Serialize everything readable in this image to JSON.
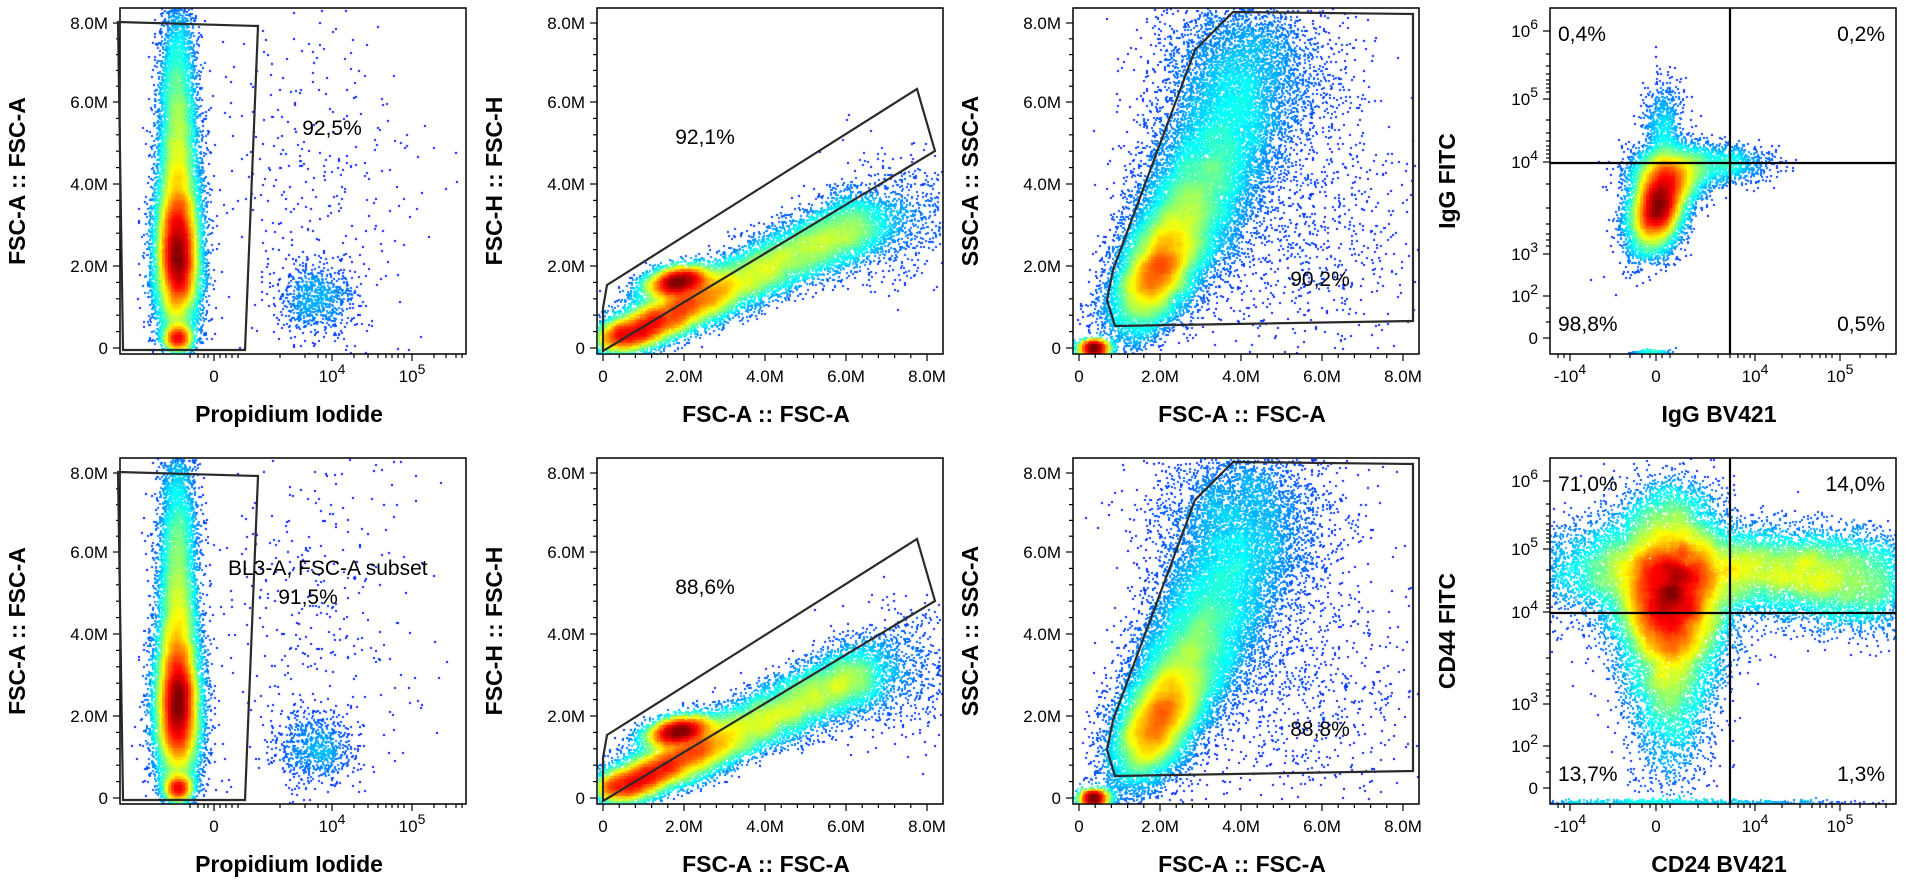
{
  "chart_data": [
    {
      "id": "p11",
      "type": "scatter",
      "xlabel": "Propidium Iodide",
      "ylabel": "FSC-A :: FSC-A",
      "x_scale": "biexponential",
      "y_scale": "linear",
      "yticks": [
        "0",
        "2.0M",
        "4.0M",
        "6.0M",
        "8.0M"
      ],
      "xticks": [
        "0",
        "10^4",
        "10^5"
      ],
      "gates": [
        {
          "label": "92,5%",
          "name": ""
        }
      ]
    },
    {
      "id": "p12",
      "type": "scatter",
      "xlabel": "FSC-A :: FSC-A",
      "ylabel": "FSC-H :: FSC-H",
      "x_scale": "linear",
      "y_scale": "linear",
      "yticks": [
        "0",
        "2.0M",
        "4.0M",
        "6.0M",
        "8.0M"
      ],
      "xticks": [
        "0",
        "2.0M",
        "4.0M",
        "6.0M",
        "8.0M"
      ],
      "gates": [
        {
          "label": "92,1%",
          "name": ""
        }
      ]
    },
    {
      "id": "p13",
      "type": "scatter",
      "xlabel": "FSC-A :: FSC-A",
      "ylabel": "SSC-A :: SSC-A",
      "x_scale": "linear",
      "y_scale": "linear",
      "yticks": [
        "0",
        "2.0M",
        "4.0M",
        "6.0M",
        "8.0M"
      ],
      "xticks": [
        "0",
        "2.0M",
        "4.0M",
        "6.0M",
        "8.0M"
      ],
      "gates": [
        {
          "label": "90,2%",
          "name": ""
        }
      ]
    },
    {
      "id": "p14",
      "type": "scatter",
      "xlabel": "IgG BV421",
      "ylabel": "IgG FITC",
      "x_scale": "biexponential",
      "y_scale": "biexponential",
      "yticks": [
        "0",
        "10^2",
        "10^3",
        "10^4",
        "10^5",
        "10^6"
      ],
      "xticks": [
        "-10^4",
        "0",
        "10^4",
        "10^5"
      ],
      "quadrants": {
        "top_left": "0,4%",
        "top_right": "0,2%",
        "bottom_left": "98,8%",
        "bottom_right": "0,5%"
      }
    },
    {
      "id": "p21",
      "type": "scatter",
      "xlabel": "Propidium Iodide",
      "ylabel": "FSC-A :: FSC-A",
      "x_scale": "biexponential",
      "y_scale": "linear",
      "yticks": [
        "0",
        "2.0M",
        "4.0M",
        "6.0M",
        "8.0M"
      ],
      "xticks": [
        "0",
        "10^4",
        "10^5"
      ],
      "gates": [
        {
          "label": "91,5%",
          "name": "BL3-A, FSC-A subset"
        }
      ]
    },
    {
      "id": "p22",
      "type": "scatter",
      "xlabel": "FSC-A :: FSC-A",
      "ylabel": "FSC-H :: FSC-H",
      "x_scale": "linear",
      "y_scale": "linear",
      "yticks": [
        "0",
        "2.0M",
        "4.0M",
        "6.0M",
        "8.0M"
      ],
      "xticks": [
        "0",
        "2.0M",
        "4.0M",
        "6.0M",
        "8.0M"
      ],
      "gates": [
        {
          "label": "88,6%",
          "name": ""
        }
      ]
    },
    {
      "id": "p23",
      "type": "scatter",
      "xlabel": "FSC-A :: FSC-A",
      "ylabel": "SSC-A :: SSC-A",
      "x_scale": "linear",
      "y_scale": "linear",
      "yticks": [
        "0",
        "2.0M",
        "4.0M",
        "6.0M",
        "8.0M"
      ],
      "xticks": [
        "0",
        "2.0M",
        "4.0M",
        "6.0M",
        "8.0M"
      ],
      "gates": [
        {
          "label": "88,8%",
          "name": ""
        }
      ]
    },
    {
      "id": "p24",
      "type": "scatter",
      "xlabel": "CD24 BV421",
      "ylabel": "CD44 FITC",
      "x_scale": "biexponential",
      "y_scale": "biexponential",
      "yticks": [
        "0",
        "10^2",
        "10^3",
        "10^4",
        "10^5",
        "10^6"
      ],
      "xticks": [
        "-10^4",
        "0",
        "10^4",
        "10^5"
      ],
      "quadrants": {
        "top_left": "71,0%",
        "top_right": "14,0%",
        "bottom_left": "13,7%",
        "bottom_right": "1,3%"
      }
    }
  ]
}
